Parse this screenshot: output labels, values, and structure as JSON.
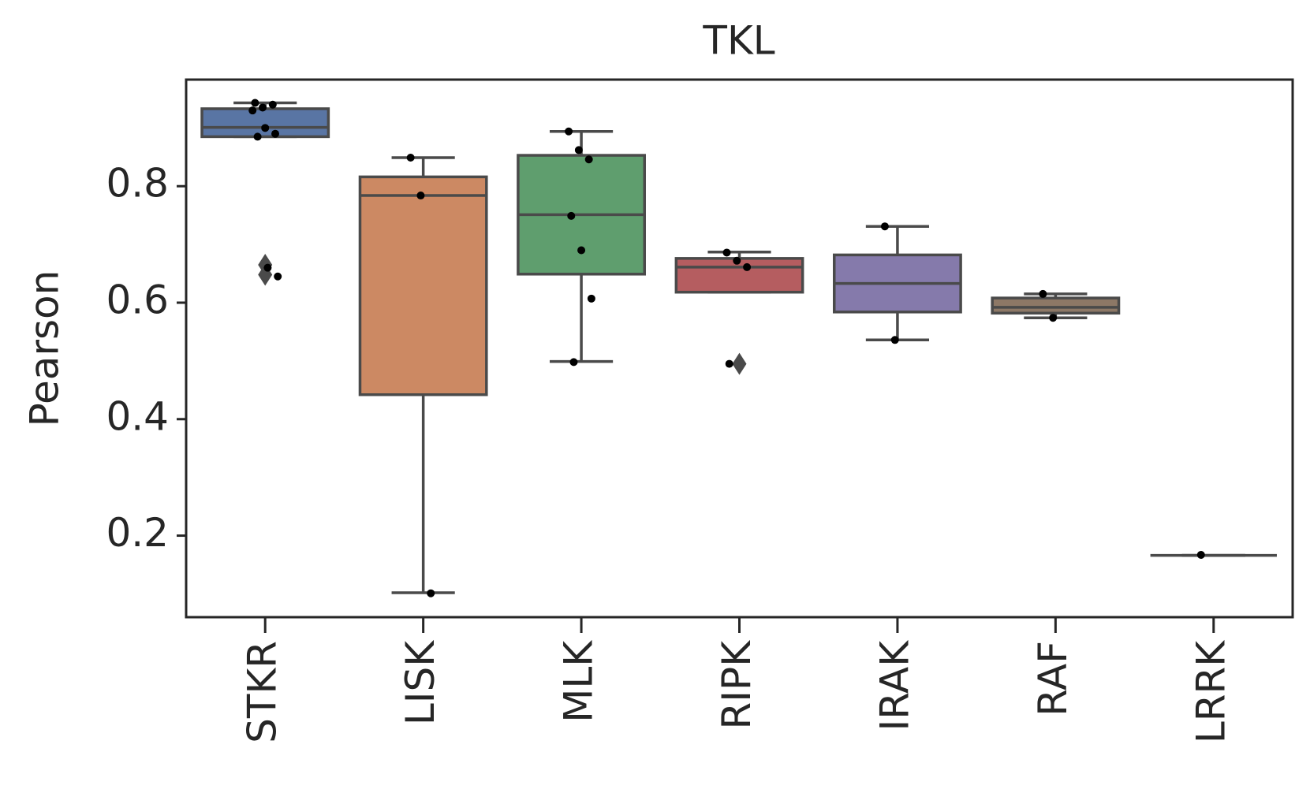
{
  "chart_data": {
    "type": "box",
    "title": "TKL",
    "y_label": "Pearson",
    "ylim": [
      0.06,
      0.983
    ],
    "yticks": [
      0.2,
      0.4,
      0.6,
      0.8
    ],
    "series": [
      {
        "name": "STKR",
        "color": "#5975a4",
        "whislo": 0.885,
        "q1": 0.885,
        "med": 0.901,
        "q3": 0.933,
        "whishi": 0.943,
        "fliers": [
          0.665,
          0.648
        ],
        "points": [
          0.93,
          0.935,
          0.94,
          0.943,
          0.9,
          0.89,
          0.885,
          0.66,
          0.645
        ]
      },
      {
        "name": "LISK",
        "color": "#cc8963",
        "whislo": 0.102,
        "q1": 0.442,
        "med": 0.784,
        "q3": 0.816,
        "whishi": 0.849,
        "fliers": [],
        "points": [
          0.849,
          0.784,
          0.101
        ]
      },
      {
        "name": "MLK",
        "color": "#5f9e6e",
        "whislo": 0.499,
        "q1": 0.649,
        "med": 0.751,
        "q3": 0.853,
        "whishi": 0.894,
        "fliers": [],
        "points": [
          0.894,
          0.862,
          0.846,
          0.749,
          0.69,
          0.607,
          0.498
        ]
      },
      {
        "name": "RIPK",
        "color": "#b55d60",
        "whislo": 0.618,
        "q1": 0.618,
        "med": 0.661,
        "q3": 0.676,
        "whishi": 0.687,
        "fliers": [
          0.495
        ],
        "points": [
          0.686,
          0.672,
          0.661,
          0.495
        ]
      },
      {
        "name": "IRAK",
        "color": "#857aab",
        "whislo": 0.536,
        "q1": 0.584,
        "med": 0.633,
        "q3": 0.682,
        "whishi": 0.731,
        "fliers": [],
        "points": [
          0.731,
          0.536
        ]
      },
      {
        "name": "RAF",
        "color": "#8d7866",
        "whislo": 0.574,
        "q1": 0.582,
        "med": 0.592,
        "q3": 0.608,
        "whishi": 0.615,
        "fliers": [],
        "points": [
          0.615,
          0.574
        ]
      },
      {
        "name": "LRRK",
        "color": "#da8bc3",
        "whislo": 0.166,
        "q1": 0.166,
        "med": 0.166,
        "q3": 0.166,
        "whishi": 0.166,
        "fliers": [],
        "points": [
          0.167
        ]
      }
    ]
  }
}
